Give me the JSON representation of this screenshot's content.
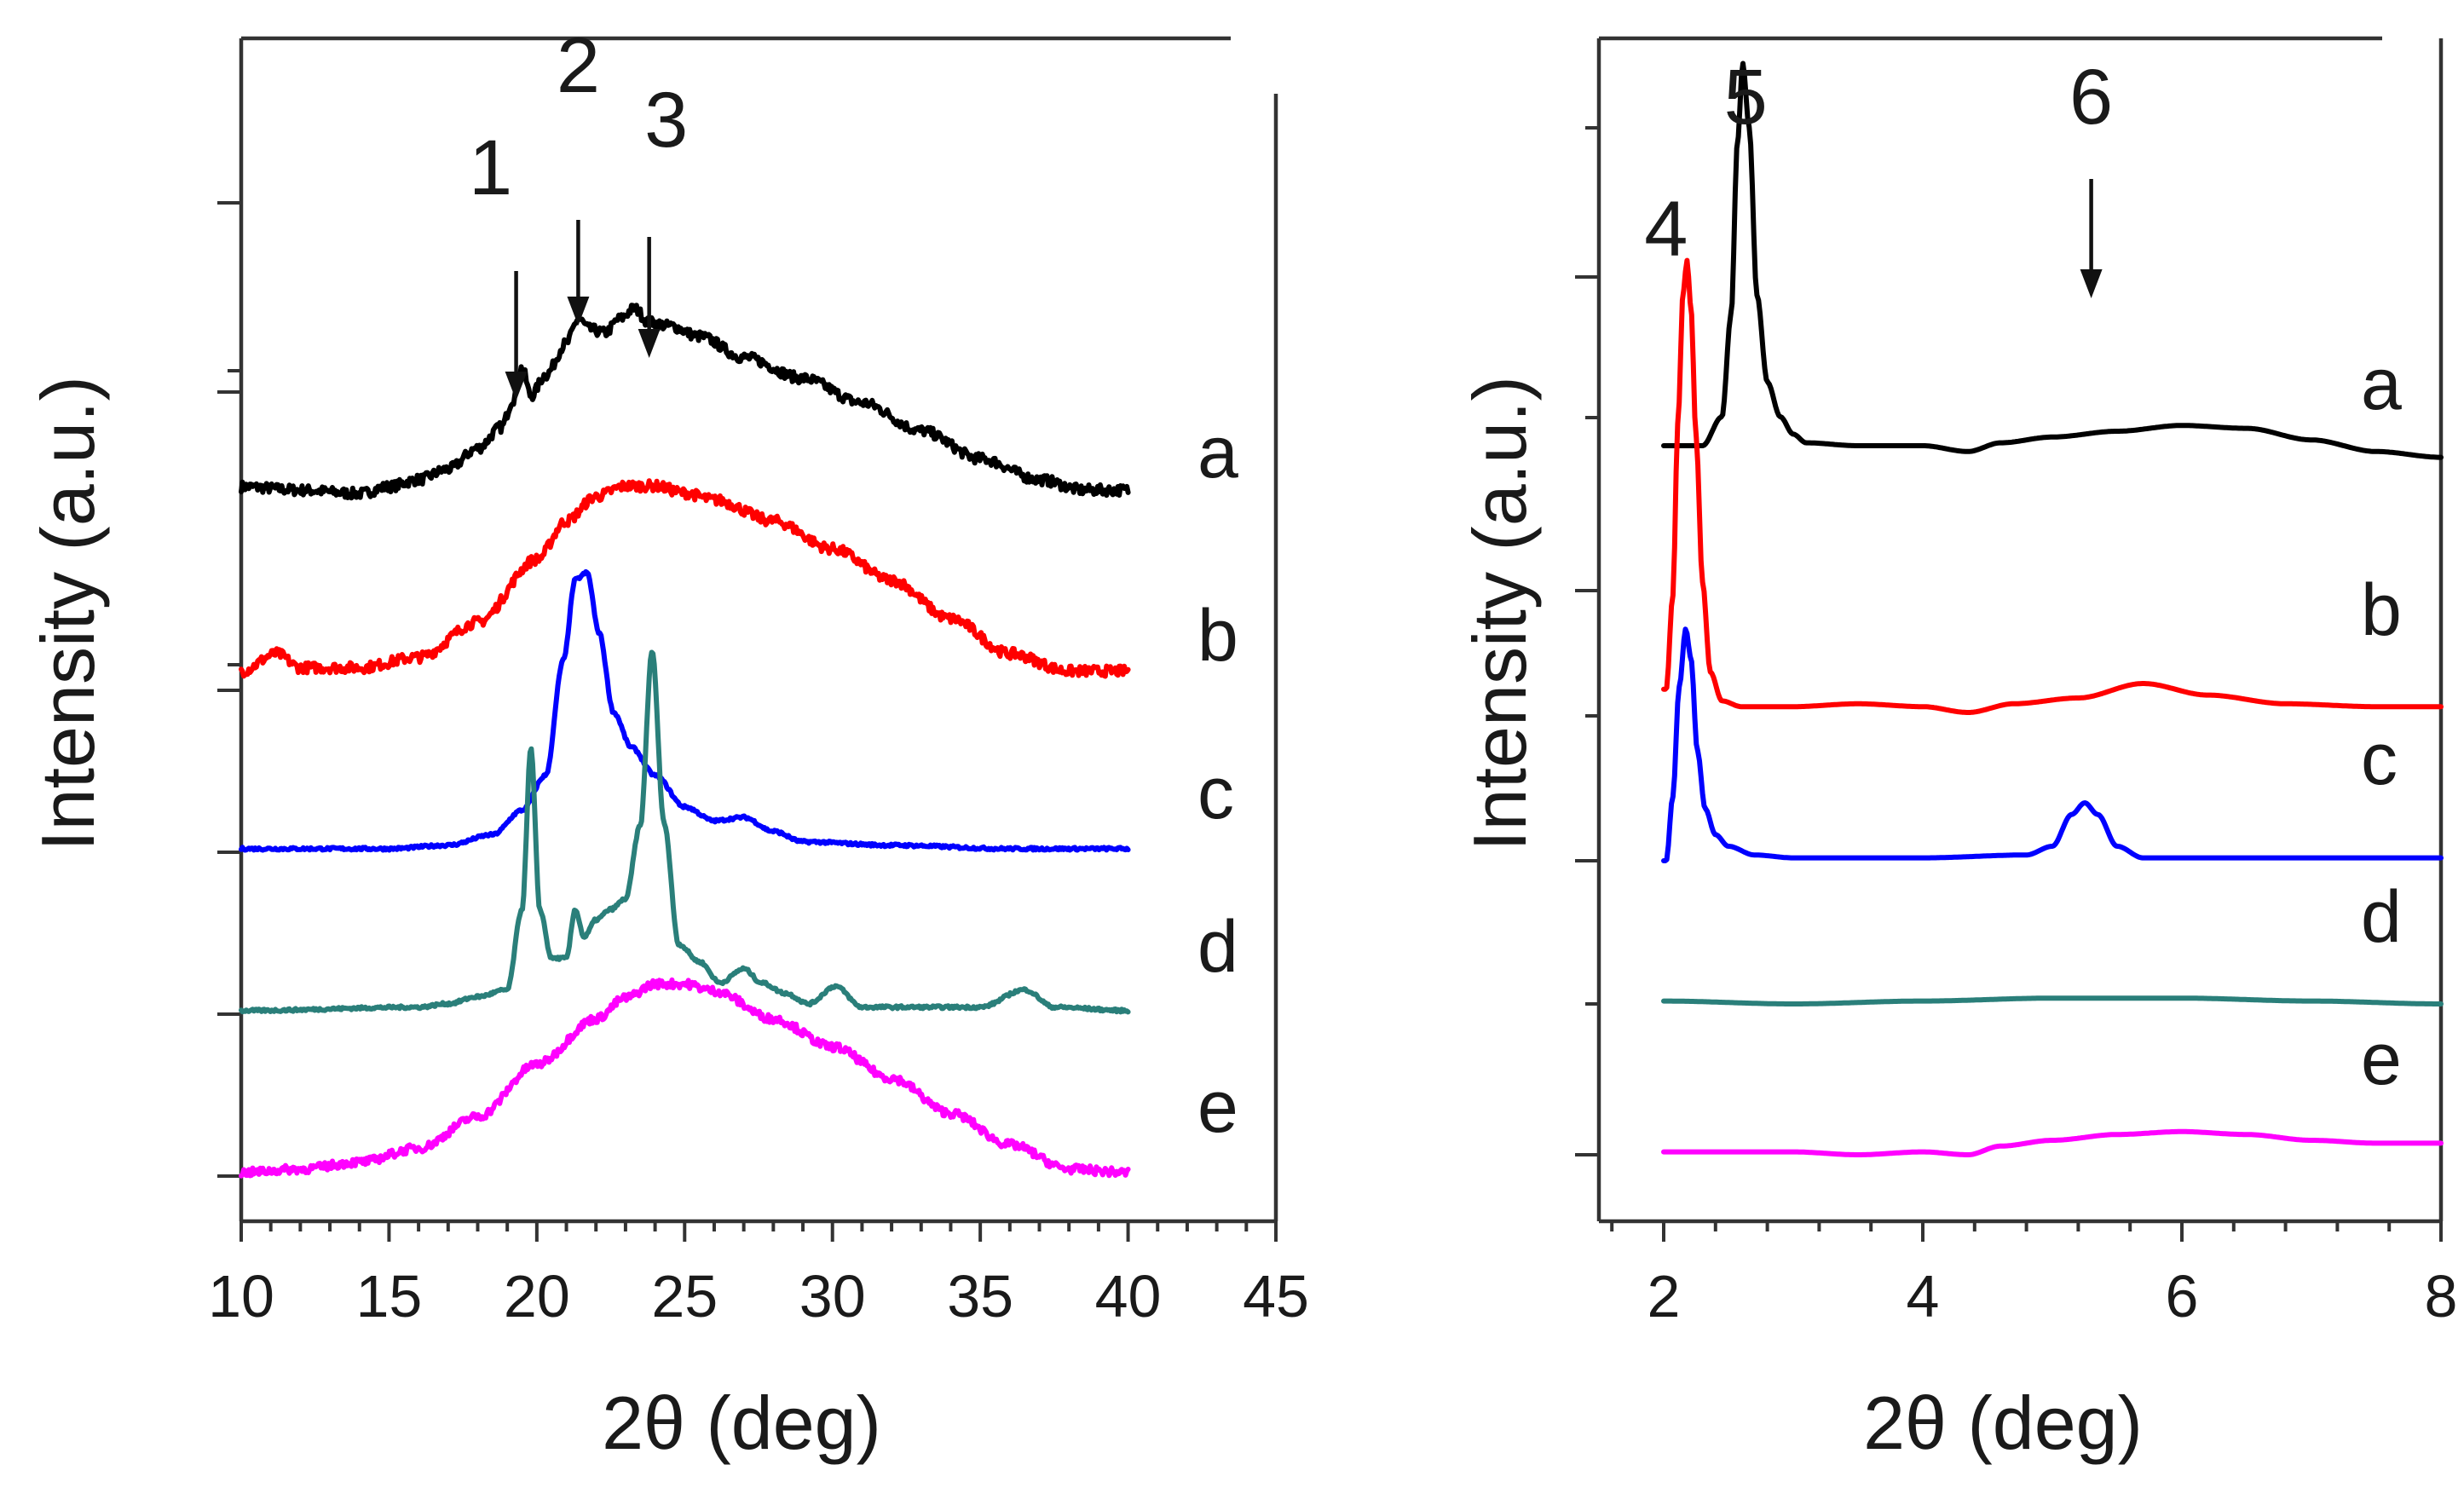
{
  "chart_data": [
    {
      "type": "line",
      "panel": "left",
      "xlabel": "2θ (deg)",
      "ylabel": "Intensity (a.u.)",
      "xlim": [
        10,
        45
      ],
      "xticks": [
        10,
        15,
        20,
        25,
        30,
        35,
        40,
        45
      ],
      "x_range_plotted": [
        10,
        40
      ],
      "series": [
        {
          "name": "a",
          "color": "#000000",
          "noise": 0.015,
          "x": [
            10,
            12,
            14,
            15,
            16,
            17,
            18,
            18.8,
            19.2,
            19.5,
            19.8,
            20.3,
            21.0,
            21.4,
            21.8,
            22.3,
            22.8,
            23.3,
            23.8,
            24.5,
            25.5,
            27,
            29,
            31,
            33,
            35,
            37,
            38.5,
            40
          ],
          "y": [
            0.1,
            0.09,
            0.08,
            0.1,
            0.12,
            0.15,
            0.21,
            0.27,
            0.35,
            0.44,
            0.36,
            0.42,
            0.51,
            0.58,
            0.55,
            0.54,
            0.58,
            0.61,
            0.57,
            0.56,
            0.53,
            0.47,
            0.41,
            0.34,
            0.26,
            0.18,
            0.12,
            0.09,
            0.09
          ]
        },
        {
          "name": "b",
          "color": "#ff0000",
          "noise": 0.015,
          "x": [
            10,
            11.2,
            12,
            14,
            16,
            18,
            20,
            21,
            22,
            23,
            24,
            25,
            26,
            28,
            30,
            32,
            34,
            36,
            38,
            40
          ],
          "y": [
            0.05,
            0.1,
            0.06,
            0.06,
            0.09,
            0.19,
            0.37,
            0.48,
            0.55,
            0.58,
            0.58,
            0.56,
            0.54,
            0.48,
            0.4,
            0.31,
            0.2,
            0.1,
            0.05,
            0.05
          ]
        },
        {
          "name": "c",
          "color": "#0000ff",
          "noise": 0.004,
          "x": [
            10,
            15,
            17,
            18.5,
            19.5,
            20.3,
            20.9,
            21.3,
            21.7,
            22.1,
            22.6,
            23.2,
            24,
            25,
            26,
            27,
            28,
            29,
            32,
            36,
            40
          ],
          "y": [
            0.01,
            0.01,
            0.02,
            0.05,
            0.12,
            0.22,
            0.55,
            0.78,
            0.8,
            0.63,
            0.4,
            0.3,
            0.22,
            0.13,
            0.09,
            0.1,
            0.06,
            0.03,
            0.02,
            0.01,
            0.01
          ]
        },
        {
          "name": "d",
          "color": "#2a7f7a",
          "noise": 0.004,
          "x": [
            10,
            16,
            17,
            18,
            19,
            19.5,
            19.8,
            20.1,
            20.5,
            21.0,
            21.3,
            21.6,
            22.0,
            22.5,
            23.0,
            23.5,
            23.9,
            24.3,
            24.8,
            25.5,
            26.2,
            27,
            27.6,
            28.4,
            29.2,
            30.1,
            31,
            33,
            35,
            36.5,
            37.5,
            40
          ],
          "y": [
            0.01,
            0.02,
            0.03,
            0.05,
            0.07,
            0.3,
            0.76,
            0.3,
            0.16,
            0.16,
            0.3,
            0.22,
            0.27,
            0.3,
            0.33,
            0.54,
            1.04,
            0.55,
            0.2,
            0.15,
            0.09,
            0.13,
            0.09,
            0.06,
            0.03,
            0.08,
            0.02,
            0.02,
            0.02,
            0.07,
            0.02,
            0.01
          ]
        },
        {
          "name": "e",
          "color": "#ff00ff",
          "noise": 0.012,
          "x": [
            10,
            12,
            14,
            16,
            18,
            20,
            22,
            23,
            24,
            25,
            26,
            28,
            30,
            32,
            34,
            36,
            38,
            40
          ],
          "y": [
            0.01,
            0.02,
            0.04,
            0.08,
            0.17,
            0.32,
            0.45,
            0.51,
            0.55,
            0.55,
            0.53,
            0.45,
            0.37,
            0.28,
            0.18,
            0.09,
            0.02,
            0.01
          ]
        }
      ],
      "curve_labels": [
        "a",
        "b",
        "c",
        "d",
        "e"
      ],
      "annotations": [
        {
          "text": "1",
          "x": 19.3
        },
        {
          "text": "2",
          "x": 21.4
        },
        {
          "text": "3",
          "x": 23.8
        }
      ]
    },
    {
      "type": "line",
      "panel": "right",
      "xlabel": "2θ (deg)",
      "ylabel": "Intensity (a.u.)",
      "xlim": [
        1.5,
        8
      ],
      "xticks": [
        2,
        4,
        6,
        8
      ],
      "x_range_plotted": [
        2,
        8
      ],
      "series": [
        {
          "name": "a",
          "color": "#000000",
          "width": 6,
          "x": [
            2.0,
            2.3,
            2.45,
            2.52,
            2.57,
            2.61,
            2.66,
            2.72,
            2.8,
            2.9,
            3.0,
            3.1,
            3.5,
            4.0,
            4.35,
            4.6,
            5.0,
            5.5,
            6.0,
            6.5,
            7.0,
            7.5,
            8.0
          ],
          "y": [
            0.1,
            0.1,
            0.2,
            0.55,
            1.15,
            1.42,
            1.2,
            0.62,
            0.32,
            0.2,
            0.14,
            0.11,
            0.1,
            0.1,
            0.08,
            0.11,
            0.13,
            0.15,
            0.17,
            0.16,
            0.12,
            0.08,
            0.06
          ]
        },
        {
          "name": "b",
          "color": "#ff0000",
          "width": 3.5,
          "x": [
            2.02,
            2.07,
            2.11,
            2.15,
            2.18,
            2.21,
            2.25,
            2.3,
            2.36,
            2.45,
            2.6,
            3.0,
            3.5,
            4.0,
            4.35,
            4.7,
            5.2,
            5.7,
            6.2,
            6.8,
            7.5,
            8.0
          ],
          "y": [
            0.08,
            0.4,
            1.0,
            1.45,
            1.56,
            1.4,
            0.95,
            0.45,
            0.14,
            0.04,
            0.02,
            0.02,
            0.03,
            0.02,
            0.0,
            0.03,
            0.05,
            0.1,
            0.06,
            0.03,
            0.02,
            0.02
          ]
        },
        {
          "name": "c",
          "color": "#0000ff",
          "width": 6,
          "x": [
            2.02,
            2.07,
            2.12,
            2.17,
            2.21,
            2.26,
            2.32,
            2.4,
            2.5,
            2.7,
            3.0,
            4.0,
            4.8,
            5.0,
            5.15,
            5.25,
            5.35,
            5.5,
            5.7,
            6.5,
            7.5,
            8.0
          ],
          "y": [
            0.0,
            0.22,
            0.6,
            0.8,
            0.7,
            0.38,
            0.18,
            0.09,
            0.05,
            0.02,
            0.01,
            0.01,
            0.02,
            0.05,
            0.16,
            0.2,
            0.16,
            0.05,
            0.01,
            0.01,
            0.01,
            0.01
          ]
        },
        {
          "name": "d",
          "color": "#2a7f7a",
          "width": 5,
          "x": [
            2.0,
            3.0,
            4.0,
            5.0,
            6.0,
            7.0,
            8.0
          ],
          "y": [
            0.01,
            0.0,
            0.01,
            0.02,
            0.02,
            0.01,
            0.0
          ]
        },
        {
          "name": "e",
          "color": "#ff00ff",
          "width": 6,
          "x": [
            2.0,
            2.5,
            3.0,
            3.5,
            4.0,
            4.35,
            4.6,
            5.0,
            5.5,
            6.0,
            6.5,
            7.0,
            7.5,
            8.0
          ],
          "y": [
            0.01,
            0.01,
            0.01,
            0.0,
            0.01,
            0.0,
            0.03,
            0.05,
            0.07,
            0.08,
            0.07,
            0.05,
            0.04,
            0.04
          ]
        }
      ],
      "curve_labels": [
        "a",
        "b",
        "c",
        "d",
        "e"
      ],
      "annotations": [
        {
          "text": "4",
          "x": 2.15
        },
        {
          "text": "5",
          "x": 2.6
        },
        {
          "text": "6",
          "x": 5.3
        }
      ]
    }
  ]
}
